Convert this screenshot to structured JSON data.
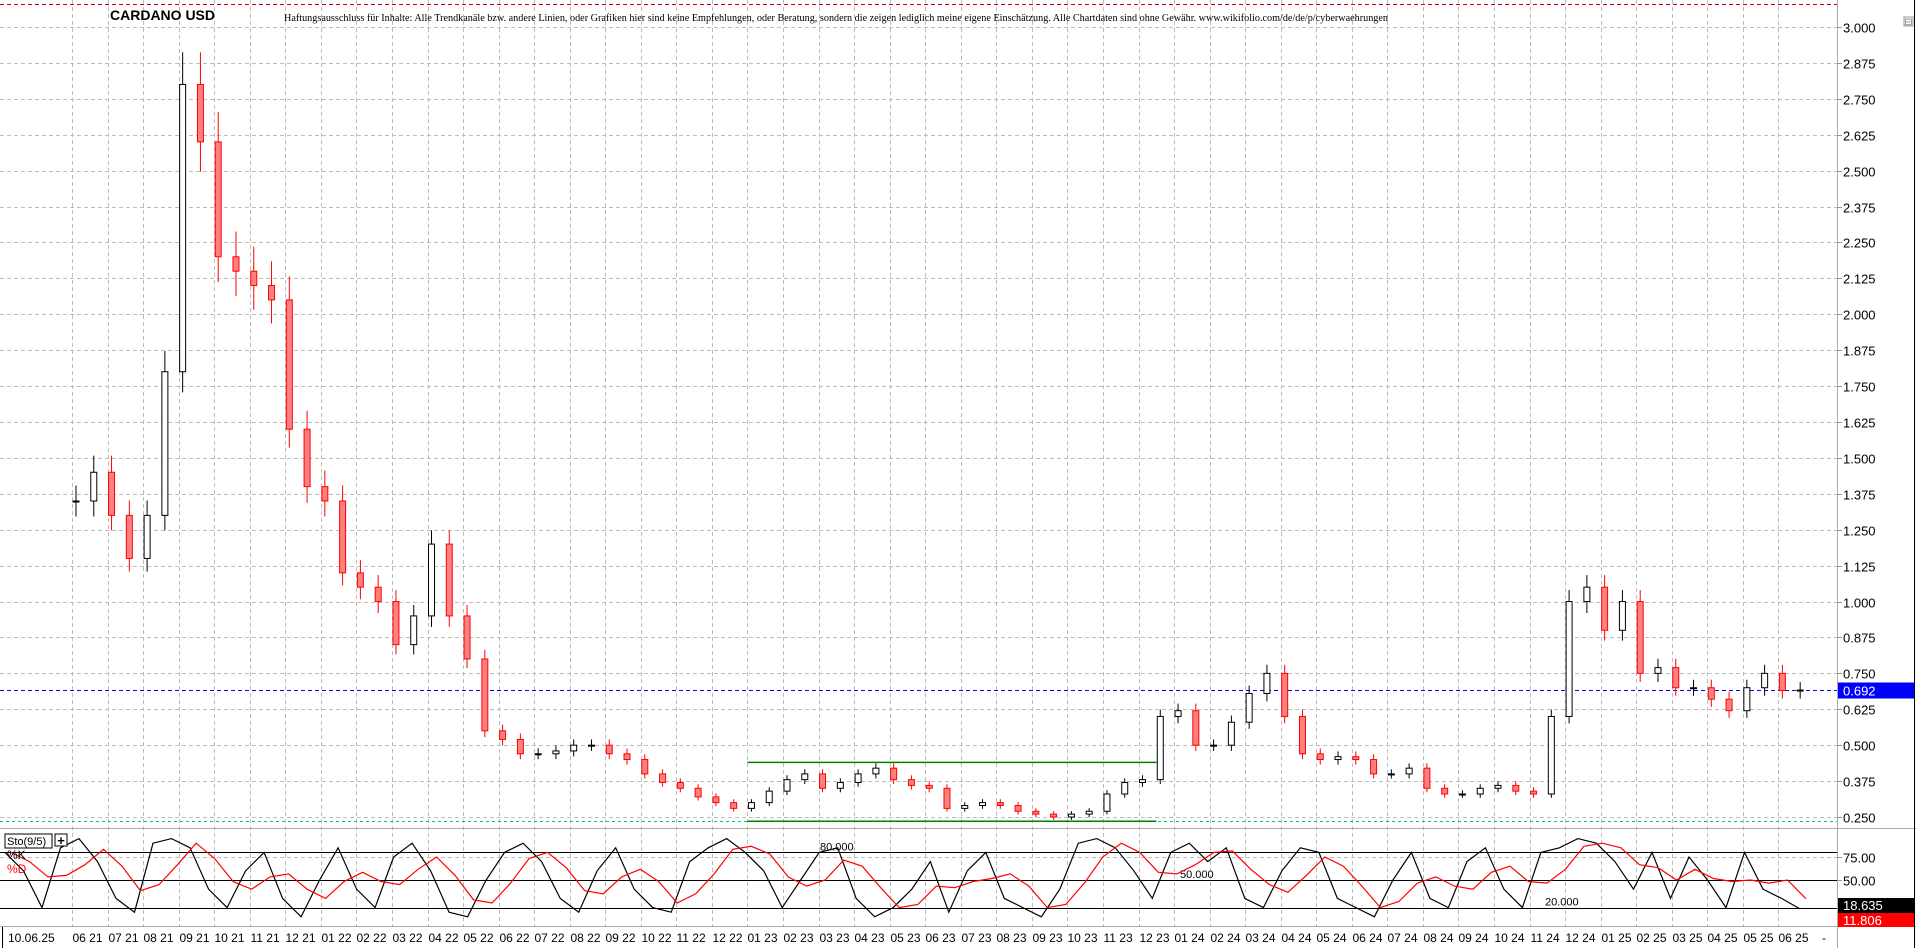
{
  "header": {
    "title": "CARDANO USD",
    "disclaimer": "Haftungsausschluss für Inhalte: Alle Trendkanäle bzw. andere Linien, oder Grafiken hier sind keine Empfehlungen, oder Beratung, sondern die zeigen lediglich meine eigene Einschätzung. Alle Chartdaten sind ohne Gewähr.  www.wikifolio.com/de/de/p/cyberwaehrungen"
  },
  "colors": {
    "up": "#000000",
    "down": "#ff0000",
    "last_price": "#0000ff",
    "trendline": "#008000",
    "support_dashed": "#00cc66",
    "alert_dashed": "#cc0000",
    "k_line": "#000000",
    "d_line": "#ff0000"
  },
  "chart_data": [
    {
      "type": "candlestick",
      "title": "CARDANO USD",
      "yticks": [
        "3.000",
        "2.875",
        "2.750",
        "2.625",
        "2.500",
        "2.375",
        "2.250",
        "2.125",
        "2.000",
        "1.875",
        "1.750",
        "1.625",
        "1.500",
        "1.375",
        "1.250",
        "1.125",
        "1.000",
        "0.875",
        "0.750",
        "0.625",
        "0.500",
        "0.375",
        "0.250"
      ],
      "ylim": [
        0.25,
        3.0
      ],
      "grid": true,
      "last_price": 0.692,
      "last_price_label": "0.692",
      "date_label": "10.06.25",
      "xticks": [
        "06 21",
        "07 21",
        "08 21",
        "09 21",
        "10 21",
        "11 21",
        "12 21",
        "01 22",
        "02 22",
        "03 22",
        "04 22",
        "05 22",
        "06 22",
        "07 22",
        "08 22",
        "09 22",
        "10 22",
        "11 22",
        "12 22",
        "01 23",
        "02 23",
        "03 23",
        "04 23",
        "05 23",
        "06 23",
        "07 23",
        "08 23",
        "09 23",
        "10 23",
        "11 23",
        "12 23",
        "01 24",
        "02 24",
        "03 24",
        "04 24",
        "05 24",
        "06 24",
        "07 24",
        "08 24",
        "09 24",
        "10 24",
        "11 24",
        "12 24",
        "01 25",
        "02 25",
        "03 25",
        "04 25",
        "05 25",
        "06 25"
      ],
      "closes_by_month": [
        [
          1.35,
          1.45
        ],
        [
          1.3,
          1.15
        ],
        [
          1.3,
          1.8
        ],
        [
          2.8,
          2.6
        ],
        [
          2.2,
          2.15
        ],
        [
          2.1,
          2.05
        ],
        [
          1.6,
          1.4
        ],
        [
          1.35,
          1.1
        ],
        [
          1.05,
          1.0
        ],
        [
          0.85,
          0.95
        ],
        [
          1.2,
          0.95
        ],
        [
          0.8,
          0.55
        ],
        [
          0.52,
          0.47
        ],
        [
          0.47,
          0.48
        ],
        [
          0.5,
          0.5
        ],
        [
          0.47,
          0.45
        ],
        [
          0.4,
          0.37
        ],
        [
          0.35,
          0.32
        ],
        [
          0.3,
          0.28
        ],
        [
          0.3,
          0.34
        ],
        [
          0.38,
          0.4
        ],
        [
          0.35,
          0.37
        ],
        [
          0.4,
          0.42
        ],
        [
          0.38,
          0.36
        ],
        [
          0.35,
          0.28
        ],
        [
          0.29,
          0.3
        ],
        [
          0.29,
          0.27
        ],
        [
          0.26,
          0.25
        ],
        [
          0.26,
          0.27
        ],
        [
          0.33,
          0.37
        ],
        [
          0.38,
          0.6
        ],
        [
          0.62,
          0.5
        ],
        [
          0.5,
          0.58
        ],
        [
          0.68,
          0.75
        ],
        [
          0.6,
          0.47
        ],
        [
          0.45,
          0.46
        ],
        [
          0.45,
          0.4
        ],
        [
          0.4,
          0.42
        ],
        [
          0.35,
          0.33
        ],
        [
          0.33,
          0.35
        ],
        [
          0.36,
          0.34
        ],
        [
          0.33,
          0.6
        ],
        [
          1.0,
          1.05
        ],
        [
          0.9,
          1.0
        ],
        [
          0.75,
          0.77
        ],
        [
          0.7,
          0.7
        ],
        [
          0.66,
          0.62
        ],
        [
          0.7,
          0.75
        ],
        [
          0.69,
          0.692
        ]
      ],
      "trendlines": [
        {
          "from": [
            "01 23",
            0.44
          ],
          "to": [
            "12 23",
            0.44
          ]
        },
        {
          "from": [
            "01 23",
            0.235
          ],
          "to": [
            "12 23",
            0.235
          ]
        }
      ],
      "support_level": 0.235,
      "alert_level": 3.12
    },
    {
      "type": "line",
      "title": "Sto(9/5)",
      "series_names": [
        "%K",
        "%D"
      ],
      "yticks": [
        "75.00",
        "50.00"
      ],
      "ylim": [
        0,
        100
      ],
      "levels": [
        {
          "value": 80,
          "label": "80.000"
        },
        {
          "value": 50,
          "label": "50.000"
        },
        {
          "value": 20,
          "label": "20.000"
        }
      ],
      "k_values": [
        80,
        60,
        20,
        85,
        95,
        70,
        30,
        15,
        90,
        95,
        85,
        40,
        20,
        60,
        80,
        30,
        10,
        50,
        85,
        40,
        20,
        75,
        90,
        60,
        15,
        10,
        50,
        80,
        90,
        70,
        30,
        15,
        60,
        85,
        40,
        20,
        15,
        70,
        85,
        95,
        80,
        60,
        20,
        50,
        80,
        85,
        30,
        10,
        20,
        40,
        70,
        15,
        60,
        80,
        30,
        20,
        10,
        40,
        90,
        95,
        85,
        60,
        30,
        80,
        90,
        70,
        85,
        30,
        20,
        60,
        85,
        80,
        30,
        20,
        10,
        50,
        80,
        30,
        20,
        70,
        85,
        40,
        20,
        80,
        85,
        95,
        90,
        70,
        40,
        80,
        30,
        75,
        50,
        20,
        80,
        40,
        30,
        18.635
      ],
      "k_last": "18.635",
      "d_last": "11.806"
    }
  ],
  "controls": {
    "collapse_symbol": "⊟",
    "add_symbol": "+",
    "trailing_dash": "-"
  }
}
